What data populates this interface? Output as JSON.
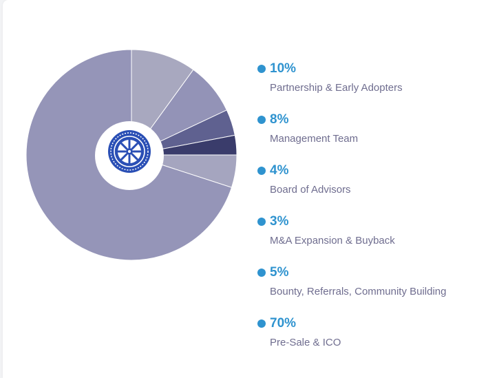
{
  "chart_data": {
    "type": "pie",
    "style": "donut",
    "slices": [
      {
        "label": "Partnership & Early Adopters",
        "value": 10,
        "percent_label": "10%",
        "color": "#a8a8bf"
      },
      {
        "label": "Management Team",
        "value": 8,
        "percent_label": "8%",
        "color": "#9393b7"
      },
      {
        "label": "Board of Advisors",
        "value": 4,
        "percent_label": "4%",
        "color": "#5f6190"
      },
      {
        "label": "M&A Expansion & Buyback",
        "value": 3,
        "percent_label": "3%",
        "color": "#3a3c6b"
      },
      {
        "label": "Bounty, Referrals, Community Building",
        "value": 5,
        "percent_label": "5%",
        "color": "#a5a5bf"
      },
      {
        "label": "Pre-Sale & ICO",
        "value": 70,
        "percent_label": "70%",
        "color": "#9595b8"
      }
    ],
    "start_angle_deg": 0,
    "direction": "clockwise",
    "legend_position": "right",
    "center_logo": "ship-wheel-seal-icon"
  },
  "colors": {
    "accent": "#2f93cf",
    "label_text": "#6f6d8f",
    "logo_blue": "#2a4fb5"
  }
}
